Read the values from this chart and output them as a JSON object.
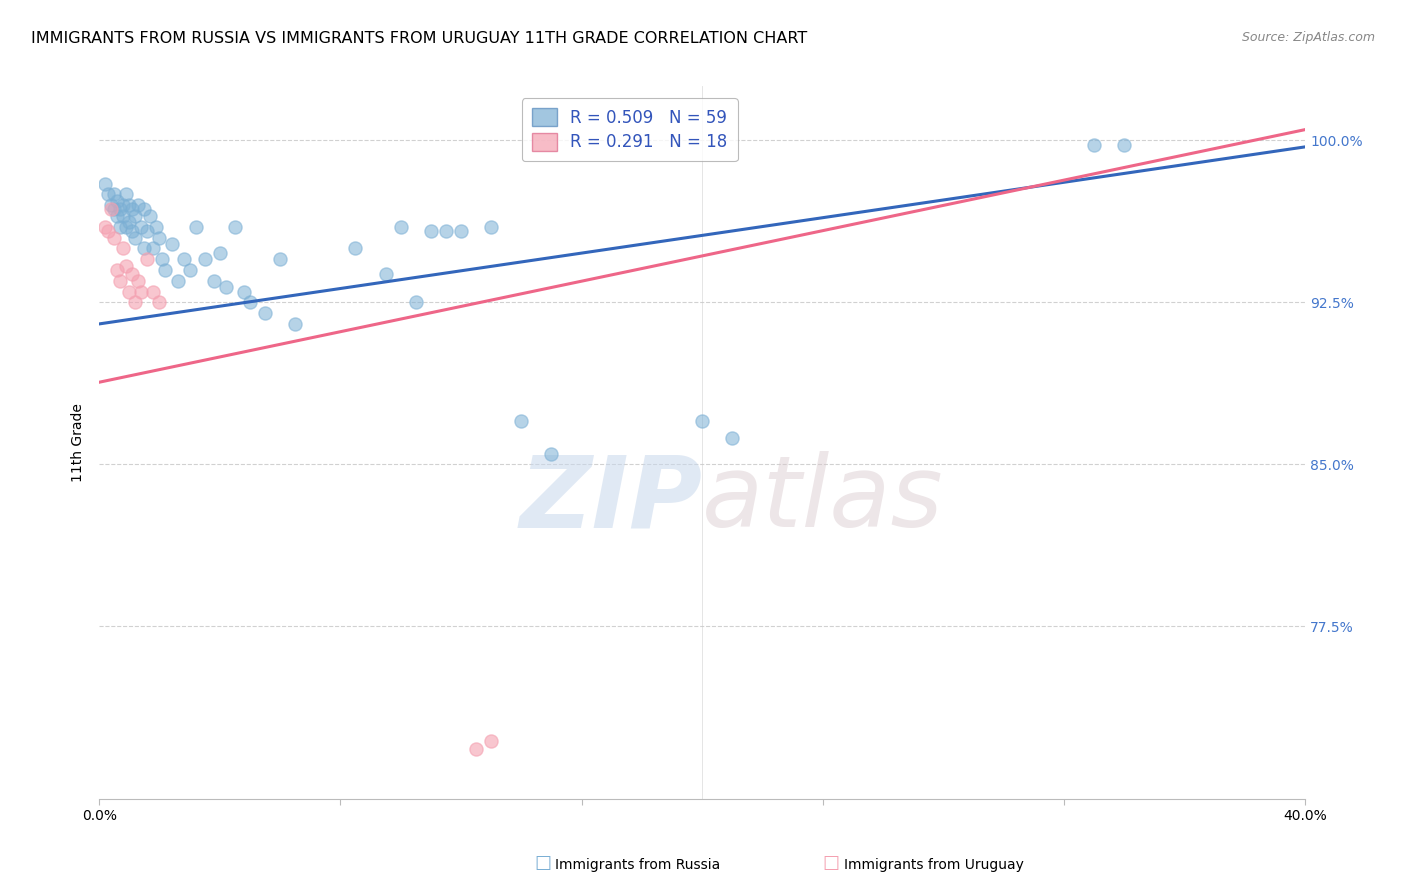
{
  "title": "IMMIGRANTS FROM RUSSIA VS IMMIGRANTS FROM URUGUAY 11TH GRADE CORRELATION CHART",
  "source": "Source: ZipAtlas.com",
  "ylabel": "11th Grade",
  "y_ticks": [
    0.775,
    0.85,
    0.925,
    1.0
  ],
  "y_tick_labels": [
    "77.5%",
    "85.0%",
    "92.5%",
    "100.0%"
  ],
  "x_min": 0.0,
  "x_max": 0.4,
  "y_min": 0.695,
  "y_max": 1.025,
  "russia_color": "#7BAFD4",
  "uruguay_color": "#F4A0B0",
  "russia_line_color": "#3366BB",
  "uruguay_line_color": "#EE6688",
  "legend_R_russia": "R = 0.509",
  "legend_N_russia": "N = 59",
  "legend_R_uruguay": "R = 0.291",
  "legend_N_uruguay": "N = 18",
  "russia_x": [
    0.002,
    0.003,
    0.004,
    0.005,
    0.005,
    0.006,
    0.006,
    0.007,
    0.007,
    0.008,
    0.008,
    0.009,
    0.009,
    0.01,
    0.01,
    0.011,
    0.011,
    0.012,
    0.012,
    0.013,
    0.014,
    0.015,
    0.015,
    0.016,
    0.017,
    0.018,
    0.019,
    0.02,
    0.021,
    0.022,
    0.024,
    0.026,
    0.028,
    0.03,
    0.032,
    0.035,
    0.038,
    0.04,
    0.042,
    0.045,
    0.048,
    0.05,
    0.055,
    0.06,
    0.065,
    0.085,
    0.095,
    0.1,
    0.105,
    0.11,
    0.115,
    0.12,
    0.13,
    0.14,
    0.15,
    0.2,
    0.21,
    0.33,
    0.34
  ],
  "russia_y": [
    0.98,
    0.975,
    0.97,
    0.975,
    0.968,
    0.965,
    0.972,
    0.96,
    0.968,
    0.97,
    0.965,
    0.975,
    0.96,
    0.97,
    0.962,
    0.968,
    0.958,
    0.965,
    0.955,
    0.97,
    0.96,
    0.968,
    0.95,
    0.958,
    0.965,
    0.95,
    0.96,
    0.955,
    0.945,
    0.94,
    0.952,
    0.935,
    0.945,
    0.94,
    0.96,
    0.945,
    0.935,
    0.948,
    0.932,
    0.96,
    0.93,
    0.925,
    0.92,
    0.945,
    0.915,
    0.95,
    0.938,
    0.96,
    0.925,
    0.958,
    0.958,
    0.958,
    0.96,
    0.87,
    0.855,
    0.87,
    0.862,
    0.998,
    0.998
  ],
  "uruguay_x": [
    0.002,
    0.003,
    0.004,
    0.005,
    0.006,
    0.007,
    0.008,
    0.009,
    0.01,
    0.011,
    0.012,
    0.013,
    0.014,
    0.016,
    0.018,
    0.02,
    0.125,
    0.13
  ],
  "uruguay_y": [
    0.96,
    0.958,
    0.968,
    0.955,
    0.94,
    0.935,
    0.95,
    0.942,
    0.93,
    0.938,
    0.925,
    0.935,
    0.93,
    0.945,
    0.93,
    0.925,
    0.718,
    0.722
  ],
  "russia_trendline_x0": 0.0,
  "russia_trendline_x1": 0.4,
  "russia_trendline_y0": 0.915,
  "russia_trendline_y1": 0.997,
  "uruguay_trendline_x0": 0.0,
  "uruguay_trendline_x1": 0.4,
  "uruguay_trendline_y0": 0.888,
  "uruguay_trendline_y1": 1.005,
  "watermark_zip": "ZIP",
  "watermark_atlas": "atlas",
  "marker_size": 90,
  "title_fontsize": 11.5,
  "tick_fontsize": 10,
  "legend_fontsize": 12
}
